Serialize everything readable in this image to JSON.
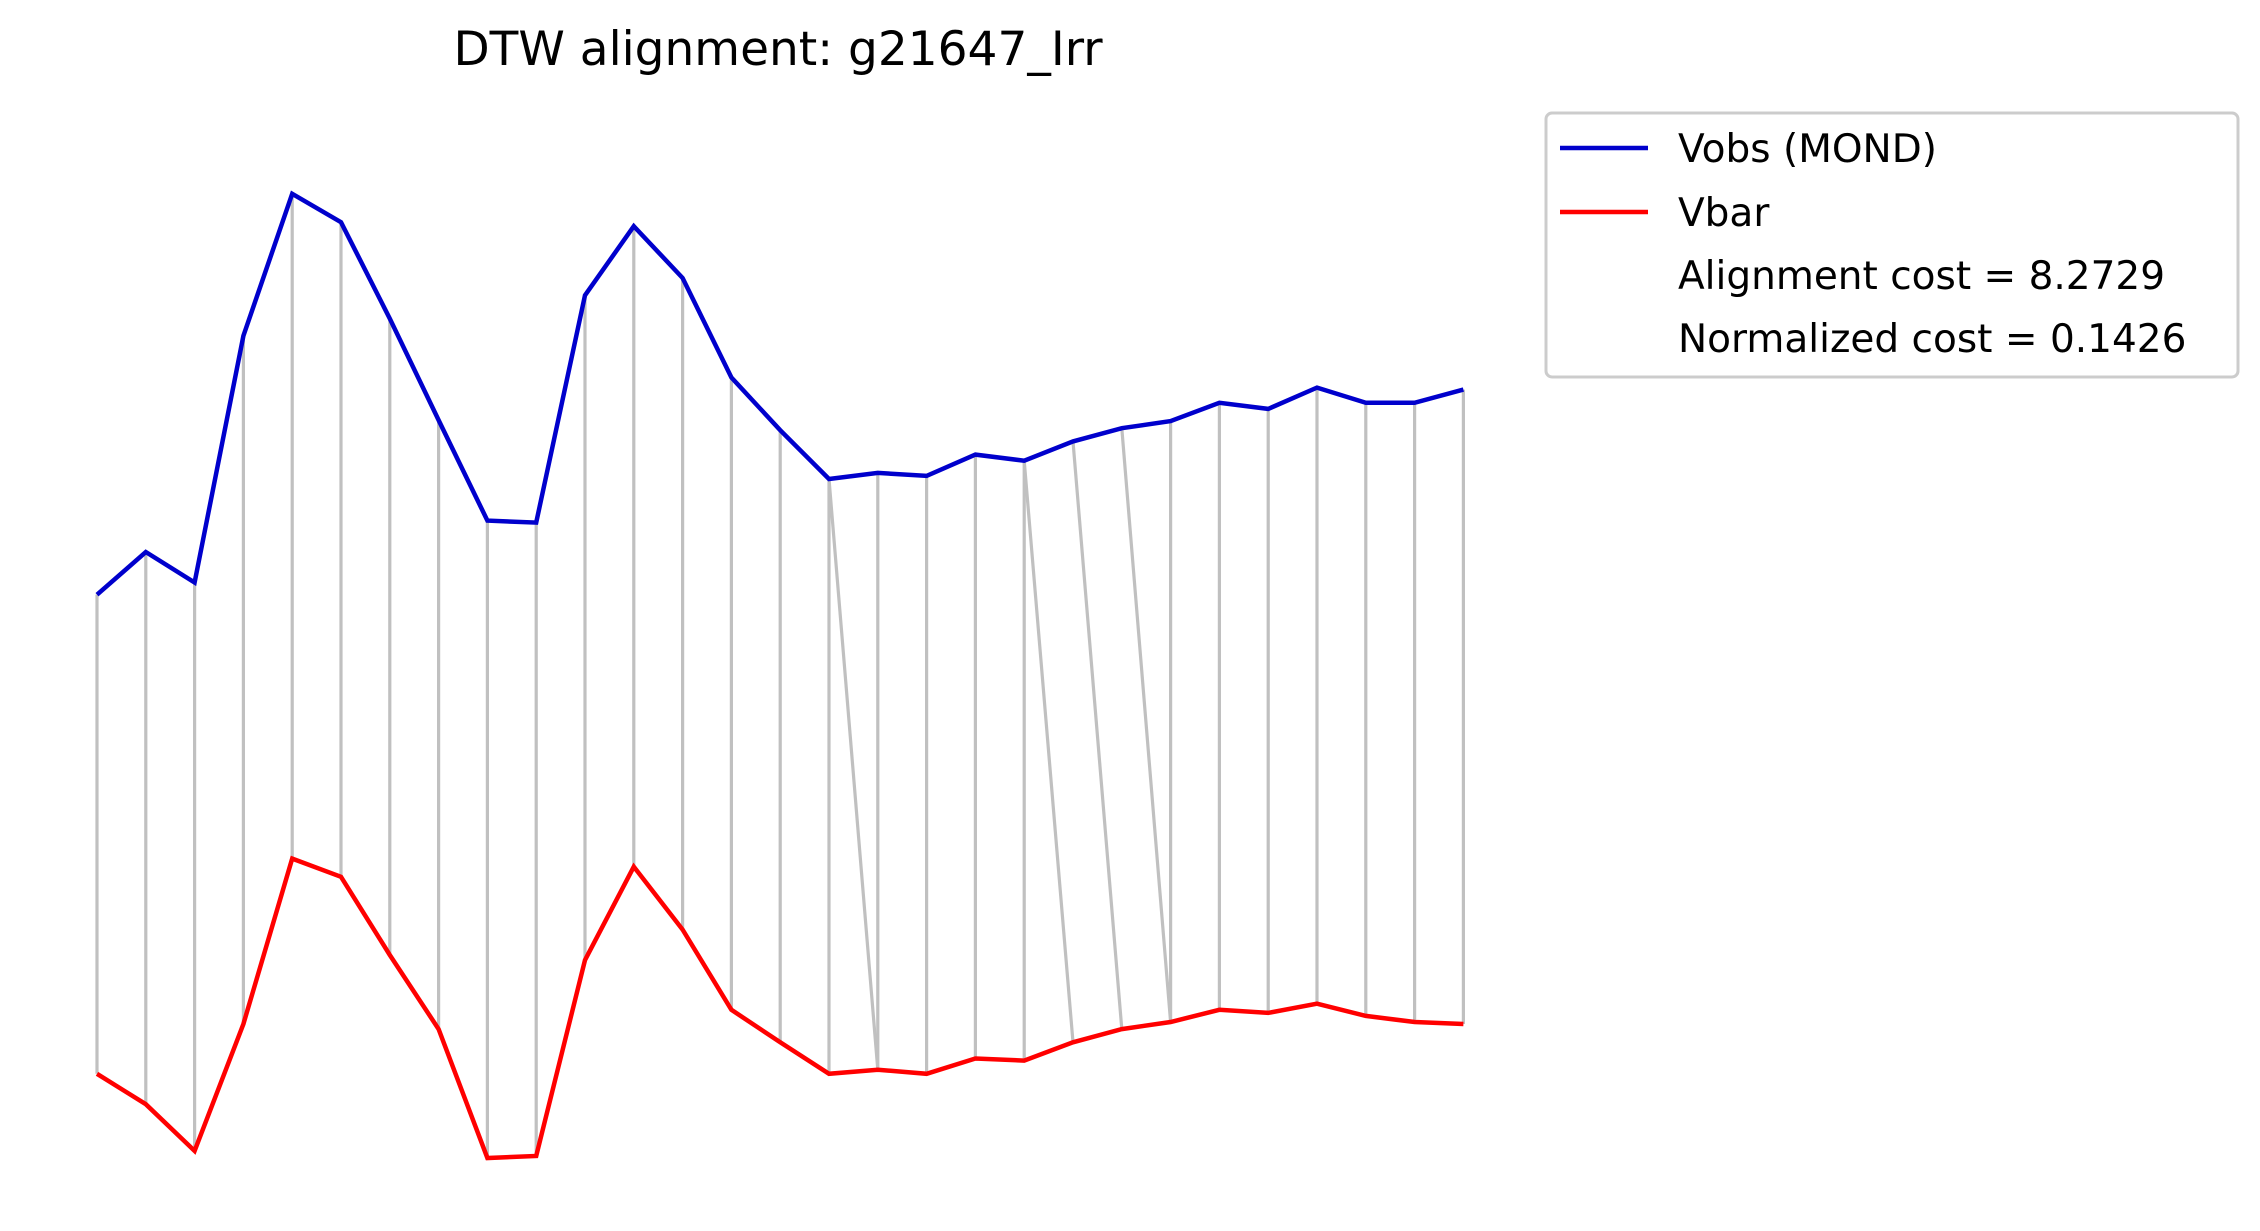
{
  "chart_data": {
    "type": "line",
    "title": "DTW alignment: g21647_Irr",
    "xlabel": "",
    "ylabel": "",
    "grid": false,
    "axes_visible": false,
    "legend_position": "upper-left-outside",
    "series": [
      {
        "name": "Vobs (MOND)",
        "color": "#0000cc",
        "values": [
          0.555,
          0.597,
          0.567,
          0.81,
          0.95,
          0.922,
          0.827,
          0.727,
          0.628,
          0.626,
          0.85,
          0.918,
          0.867,
          0.769,
          0.717,
          0.669,
          0.675,
          0.672,
          0.693,
          0.687,
          0.706,
          0.719,
          0.726,
          0.744,
          0.738,
          0.759,
          0.744,
          0.744,
          0.757
        ]
      },
      {
        "name": "Vbar",
        "color": "#ff0000",
        "values": [
          0.083,
          0.053,
          0.007,
          0.132,
          0.295,
          0.277,
          0.2,
          0.127,
          0.0,
          0.002,
          0.195,
          0.287,
          0.225,
          0.146,
          0.114,
          0.083,
          0.087,
          0.083,
          0.098,
          0.096,
          0.114,
          0.127,
          0.134,
          0.146,
          0.143,
          0.152,
          0.14,
          0.134,
          0.132
        ]
      }
    ],
    "alignment": {
      "color": "#c0c0c0",
      "pairs": [
        [
          0,
          0
        ],
        [
          1,
          1
        ],
        [
          2,
          2
        ],
        [
          3,
          3
        ],
        [
          4,
          4
        ],
        [
          5,
          5
        ],
        [
          6,
          6
        ],
        [
          7,
          7
        ],
        [
          8,
          8
        ],
        [
          9,
          9
        ],
        [
          10,
          10
        ],
        [
          11,
          11
        ],
        [
          12,
          12
        ],
        [
          13,
          13
        ],
        [
          14,
          14
        ],
        [
          15,
          15
        ],
        [
          15,
          16
        ],
        [
          16,
          16
        ],
        [
          17,
          17
        ],
        [
          18,
          18
        ],
        [
          19,
          19
        ],
        [
          19,
          20
        ],
        [
          20,
          21
        ],
        [
          21,
          22
        ],
        [
          22,
          22
        ],
        [
          23,
          23
        ],
        [
          24,
          24
        ],
        [
          25,
          25
        ],
        [
          26,
          26
        ],
        [
          27,
          27
        ],
        [
          28,
          28
        ]
      ]
    },
    "annotations": [
      "Alignment cost = 8.2729",
      "Normalized cost = 0.1426"
    ]
  }
}
